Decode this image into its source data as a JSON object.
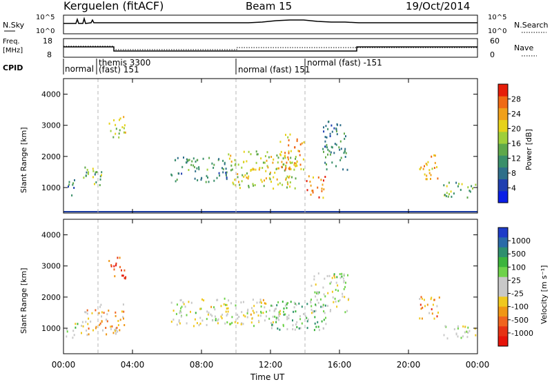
{
  "header": {
    "station": "Kerguelen (fitACF)",
    "beam": "Beam 15",
    "date": "19/Oct/2014"
  },
  "panels": {
    "nsky": {
      "label": "N.Sky",
      "ticks_left": [
        "10^5",
        "10^0"
      ],
      "ticks_right": [
        "10^5",
        "10^0"
      ],
      "right_label": "N.Search"
    },
    "freq": {
      "label_line1": "Freq.",
      "label_line2": "[MHz]",
      "ticks_left": [
        "18",
        "8"
      ],
      "ticks_right": [
        "60",
        "0"
      ],
      "right_label": "Nave"
    },
    "cpid": {
      "label": "CPID",
      "modes": [
        {
          "text": "normal",
          "hour": 0.0
        },
        {
          "text": "themis 3300",
          "hour": 1.9
        },
        {
          "text": "(fast) 151",
          "hour": 1.9
        },
        {
          "text": "normal (fast) 151",
          "hour": 9.9
        },
        {
          "text": "normal (fast) -151",
          "hour": 14.0
        }
      ]
    }
  },
  "axes": {
    "ylabel": "Slant Range [km]",
    "yticks": [
      "1000",
      "2000",
      "3000",
      "4000"
    ],
    "xticks": [
      "00:00",
      "04:00",
      "08:00",
      "12:00",
      "16:00",
      "20:00",
      "00:00"
    ],
    "xlabel": "Time UT"
  },
  "colorbars": {
    "power": {
      "label": "Power [dB]",
      "ticks": [
        "4",
        "8",
        "12",
        "16",
        "20",
        "24",
        "28"
      ],
      "colors": [
        "#0a1ee6",
        "#1f3fb0",
        "#2e6f8a",
        "#3a8f6a",
        "#5fa84a",
        "#9fcf3a",
        "#e6d21a",
        "#f0a01a",
        "#f06a14",
        "#e61e0a"
      ]
    },
    "velocity": {
      "label": "Velocity [m s⁻¹]",
      "ticks": [
        "1000",
        "500",
        "100",
        "25",
        "-25",
        "-100",
        "-500",
        "-1000"
      ],
      "colors": [
        "#1e3cc8",
        "#2a6aa8",
        "#2e8f6e",
        "#3cb43c",
        "#6ed24a",
        "#c8c8c8",
        "#c8c8c8",
        "#f0c81e",
        "#f09614",
        "#f0641e",
        "#e63214",
        "#e6140a"
      ]
    }
  },
  "chart_data": [
    {
      "type": "heatmap",
      "title": "Power",
      "xlabel": "Time UT",
      "ylabel": "Slant Range [km]",
      "xlim_hours": [
        0,
        24
      ],
      "ylim_km": [
        180,
        4500
      ],
      "colorbar_label": "Power [dB]",
      "clim": [
        0,
        30
      ],
      "echo_regions": [
        {
          "t0": 0.1,
          "t1": 0.6,
          "r0": 700,
          "r1": 1300,
          "val": 8
        },
        {
          "t0": 1.0,
          "t1": 2.2,
          "r0": 1000,
          "r1": 1700,
          "val": 14
        },
        {
          "t0": 2.6,
          "t1": 3.6,
          "r0": 2600,
          "r1": 3300,
          "val": 18
        },
        {
          "t0": 6.2,
          "t1": 9.5,
          "r0": 1200,
          "r1": 2000,
          "val": 10
        },
        {
          "t0": 9.5,
          "t1": 13.5,
          "r0": 1000,
          "r1": 2200,
          "val": 18
        },
        {
          "t0": 12.5,
          "t1": 14.0,
          "r0": 1600,
          "r1": 2800,
          "val": 22
        },
        {
          "t0": 14.0,
          "t1": 15.2,
          "r0": 700,
          "r1": 1400,
          "val": 26
        },
        {
          "t0": 15.0,
          "t1": 16.5,
          "r0": 1600,
          "r1": 3200,
          "val": 10
        },
        {
          "t0": 20.6,
          "t1": 21.8,
          "r0": 1300,
          "r1": 2100,
          "val": 22
        },
        {
          "t0": 22.0,
          "t1": 23.9,
          "r0": 700,
          "r1": 1200,
          "val": 14
        }
      ]
    },
    {
      "type": "heatmap",
      "title": "Velocity",
      "xlabel": "Time UT",
      "ylabel": "Slant Range [km]",
      "xlim_hours": [
        0,
        24
      ],
      "ylim_km": [
        180,
        4500
      ],
      "colorbar_label": "Velocity [m s⁻¹]",
      "clim": [
        -1000,
        1000
      ],
      "echo_regions": [
        {
          "t0": 0.1,
          "t1": 0.8,
          "r0": 700,
          "r1": 1200,
          "val": 0
        },
        {
          "t0": 1.0,
          "t1": 3.5,
          "r0": 800,
          "r1": 1800,
          "val": -300
        },
        {
          "t0": 2.6,
          "t1": 3.6,
          "r0": 2600,
          "r1": 3300,
          "val": -700
        },
        {
          "t0": 6.2,
          "t1": 13.0,
          "r0": 1100,
          "r1": 2000,
          "val": 0
        },
        {
          "t0": 12.0,
          "t1": 15.2,
          "r0": 900,
          "r1": 1900,
          "val": 300
        },
        {
          "t0": 14.3,
          "t1": 16.5,
          "r0": 1500,
          "r1": 2800,
          "val": 0
        },
        {
          "t0": 20.6,
          "t1": 21.8,
          "r0": 1300,
          "r1": 2100,
          "val": -400
        },
        {
          "t0": 22.0,
          "t1": 23.9,
          "r0": 700,
          "r1": 1200,
          "val": 0
        }
      ]
    }
  ]
}
